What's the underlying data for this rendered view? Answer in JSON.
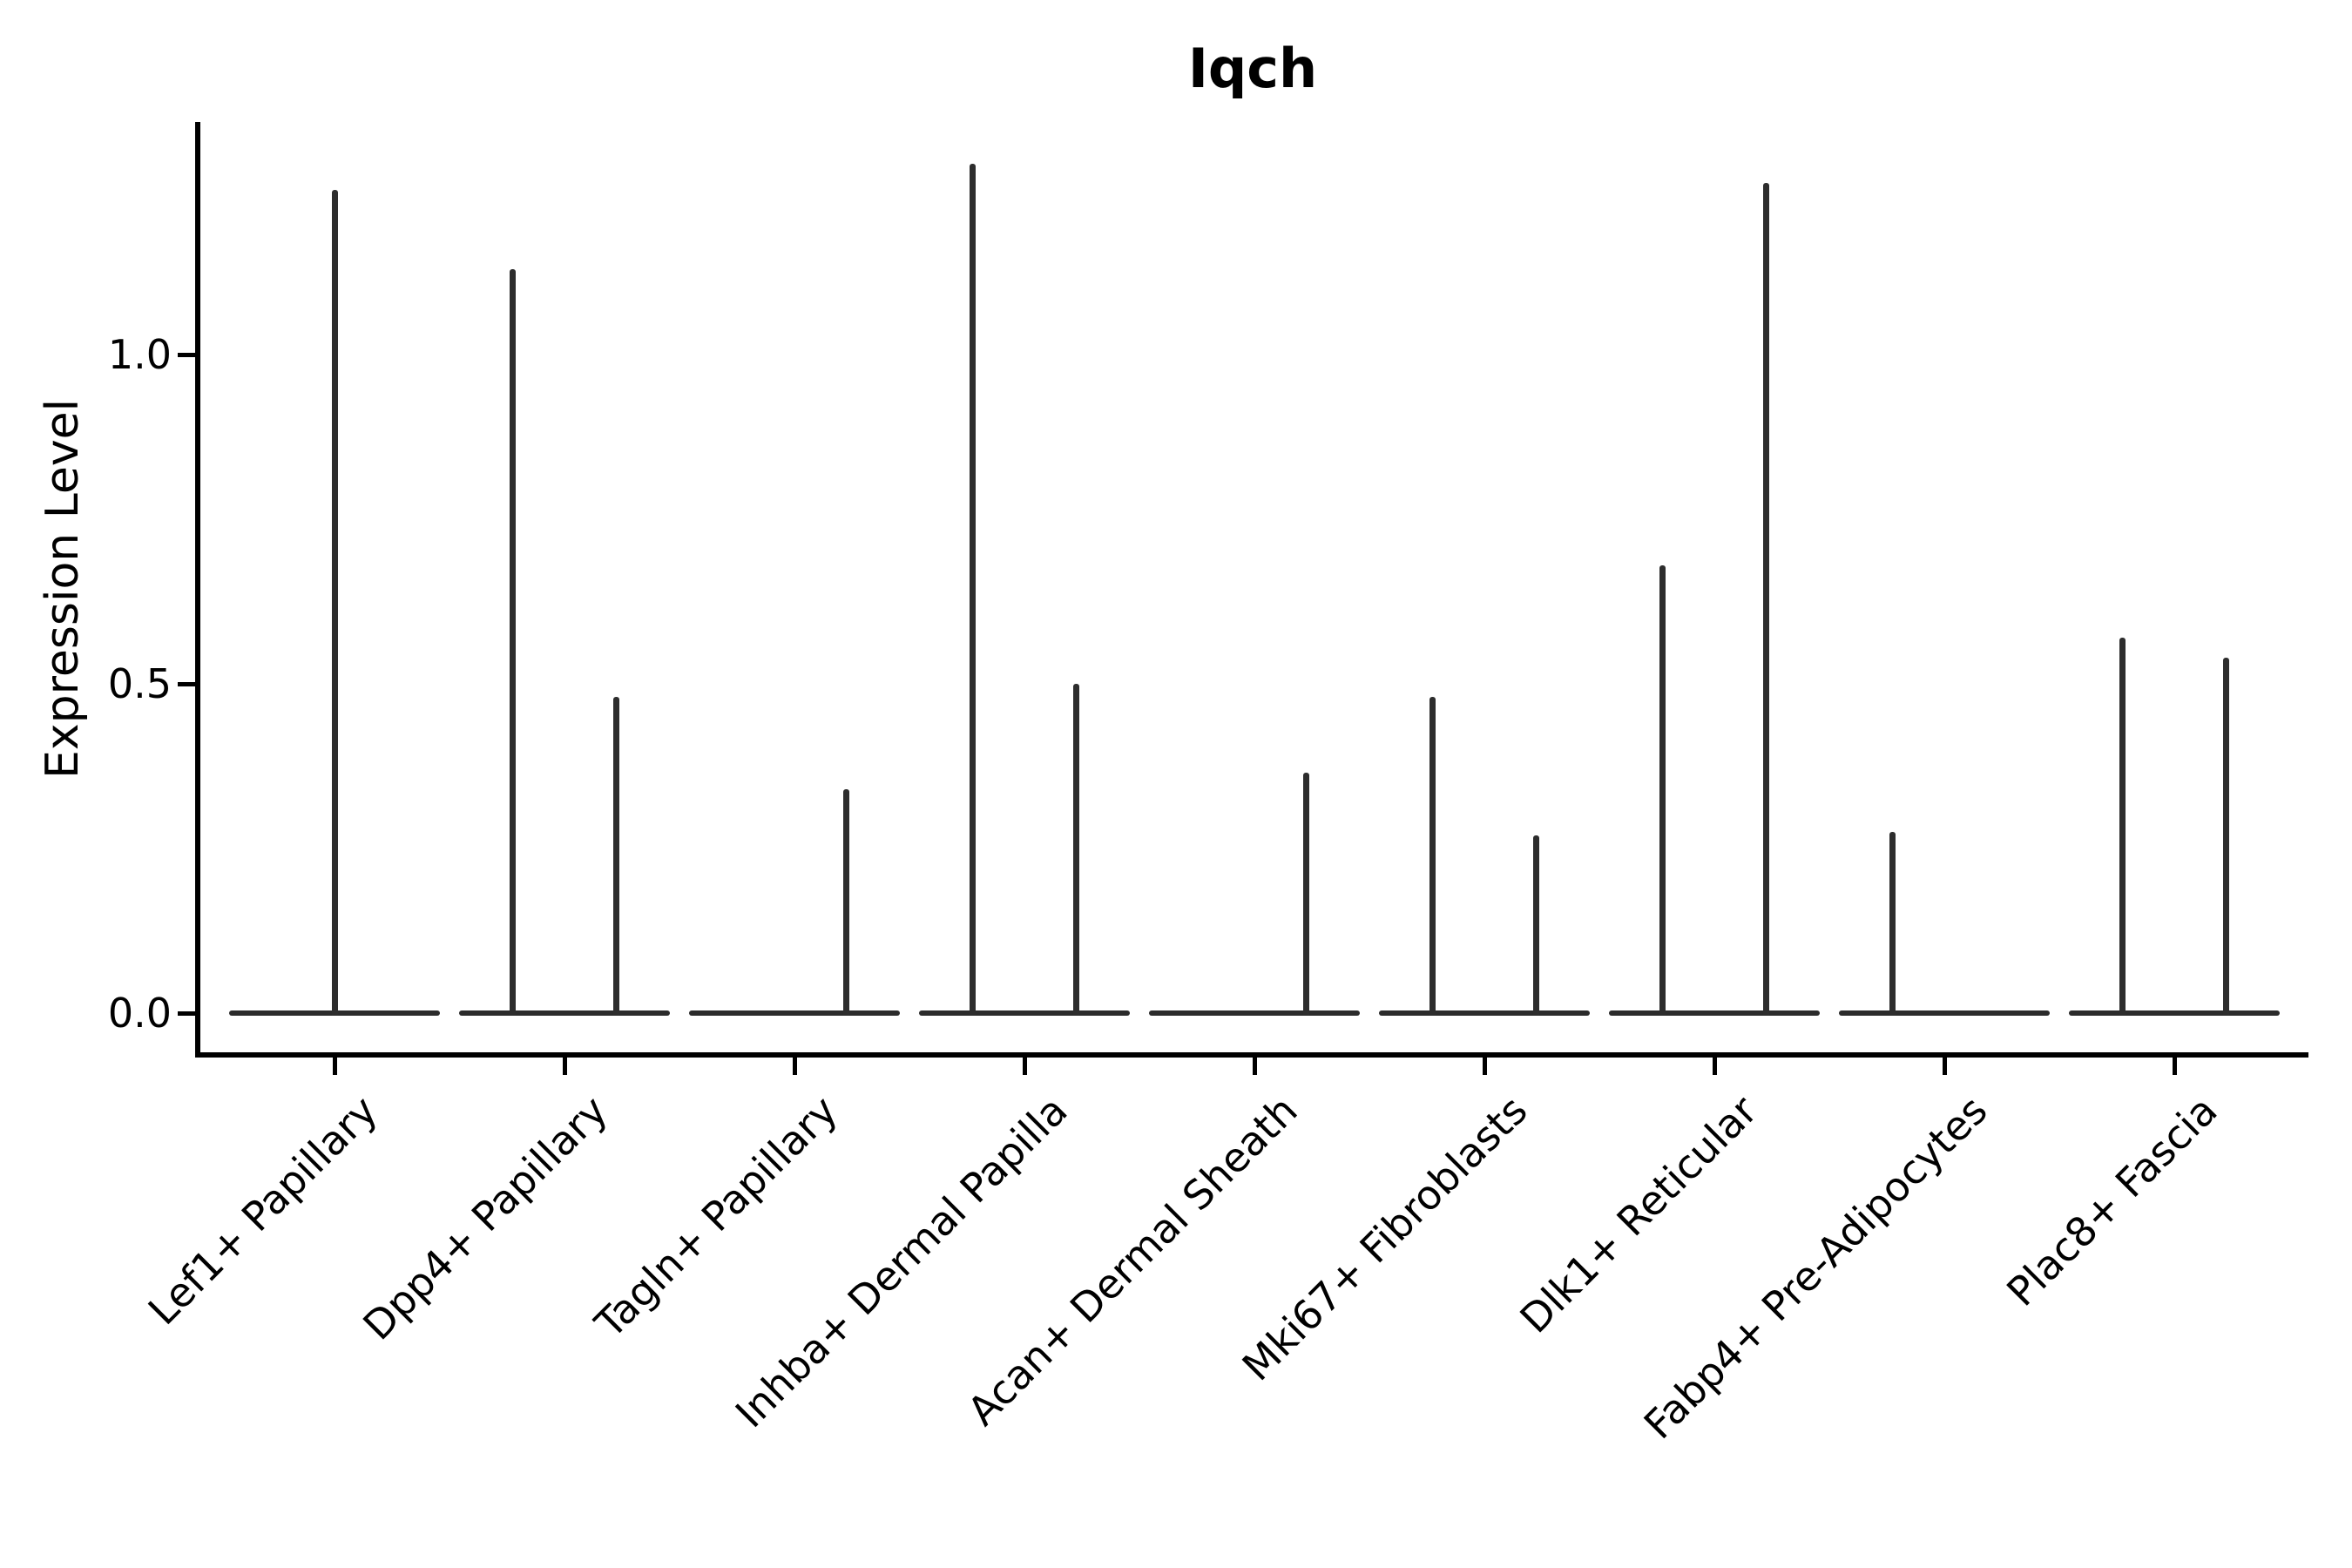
{
  "title": "Iqch",
  "ylabel": "Expression Level",
  "colors": {
    "violin": "#2b2b2b",
    "axis": "#000000",
    "text": "#000000",
    "background": "#ffffff"
  },
  "chart_data": {
    "type": "violin",
    "title": "Iqch",
    "xlabel": "",
    "ylabel": "Expression Level",
    "ytick_labels": [
      "0.0",
      "0.5",
      "1.0"
    ],
    "ytick_values": [
      0.0,
      0.5,
      1.0
    ],
    "ylim": [
      -0.06,
      1.35
    ],
    "grid": false,
    "legend": "none",
    "categories": [
      "Lef1+ Papillary",
      "Dpp4+ Papillary",
      "Tagln+ Papillary",
      "Inhba+ Dermal Papilla",
      "Acan+ Dermal Sheath",
      "Mki67+ Fibroblasts",
      "Dlk1+ Reticular",
      "Fabp4+ Pre-Adipocytes",
      "Plac8+ Fascia"
    ],
    "description": "Thin spike-shaped violins: each category shows a flat density bulge at expression 0 spanning the category width, plus narrow vertical spikes rising to the maximum expression value at sub-positions within the category (fraction of category width relative to center).",
    "baseline_value": 0.0,
    "baseline_halfwidth_frac": 0.458,
    "series": [
      {
        "category": "Lef1+ Papillary",
        "spikes": [
          {
            "pos": 0.0,
            "max": 1.25
          }
        ]
      },
      {
        "category": "Dpp4+ Papillary",
        "spikes": [
          {
            "pos": -0.225,
            "max": 1.13
          },
          {
            "pos": 0.225,
            "max": 0.48
          }
        ]
      },
      {
        "category": "Tagln+ Papillary",
        "spikes": [
          {
            "pos": 0.225,
            "max": 0.34
          }
        ]
      },
      {
        "category": "Inhba+ Dermal Papilla",
        "spikes": [
          {
            "pos": -0.225,
            "max": 1.29
          },
          {
            "pos": 0.225,
            "max": 0.5
          }
        ]
      },
      {
        "category": "Acan+ Dermal Sheath",
        "spikes": [
          {
            "pos": 0.225,
            "max": 0.365
          }
        ]
      },
      {
        "category": "Mki67+ Fibroblasts",
        "spikes": [
          {
            "pos": -0.225,
            "max": 0.48
          },
          {
            "pos": 0.225,
            "max": 0.27
          }
        ]
      },
      {
        "category": "Dlk1+ Reticular",
        "spikes": [
          {
            "pos": -0.225,
            "max": 0.68
          },
          {
            "pos": 0.225,
            "max": 1.26
          }
        ]
      },
      {
        "category": "Fabp4+ Pre-Adipocytes",
        "spikes": [
          {
            "pos": -0.225,
            "max": 0.275
          }
        ]
      },
      {
        "category": "Plac8+ Fascia",
        "spikes": [
          {
            "pos": -0.225,
            "max": 0.57
          },
          {
            "pos": 0.225,
            "max": 0.54
          }
        ]
      }
    ]
  }
}
